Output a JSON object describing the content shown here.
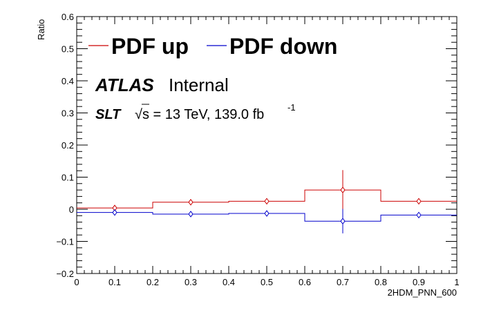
{
  "chart_data": {
    "type": "line",
    "style": "step-histogram-with-markers",
    "ylabel": "Ratio",
    "xlabel": "2HDM_PNN_600",
    "xlim": [
      0,
      1
    ],
    "ylim": [
      -0.2,
      0.6
    ],
    "x_ticks": [
      0,
      0.1,
      0.2,
      0.3,
      0.4,
      0.5,
      0.6,
      0.7,
      0.8,
      0.9,
      1
    ],
    "x_tick_labels": [
      "0",
      "0.1",
      "0.2",
      "0.3",
      "0.4",
      "0.5",
      "0.6",
      "0.7",
      "0.8",
      "0.9",
      "1"
    ],
    "y_ticks": [
      -0.2,
      -0.1,
      0,
      0.1,
      0.2,
      0.3,
      0.4,
      0.5,
      0.6
    ],
    "y_tick_labels": [
      "−0.2",
      "−0.1",
      "0",
      "0.1",
      "0.2",
      "0.3",
      "0.4",
      "0.5",
      "0.6"
    ],
    "bin_edges": [
      0,
      0.2,
      0.4,
      0.6,
      0.8,
      1.0
    ],
    "series": [
      {
        "name": "PDF up",
        "color": "#cc0000",
        "values": [
          0.004,
          0.022,
          0.025,
          0.06,
          0.025
        ],
        "marker_x": [
          0.1,
          0.3,
          0.5,
          0.7,
          0.9
        ],
        "errors": [
          0.003,
          0.006,
          0.005,
          0.062,
          0.004
        ]
      },
      {
        "name": "PDF down",
        "color": "#0000cc",
        "values": [
          -0.01,
          -0.015,
          -0.013,
          -0.037,
          -0.018
        ],
        "marker_x": [
          0.1,
          0.3,
          0.5,
          0.7,
          0.9
        ],
        "errors": [
          0.003,
          0.005,
          0.004,
          0.038,
          0.004
        ]
      }
    ],
    "legend_position": "top-left"
  },
  "labels": {
    "atlas": "ATLAS",
    "internal": "Internal",
    "channel": "SLT",
    "sqrt_symbol": "√",
    "energy_text": "s = 13 TeV, 139.0 fb",
    "energy_superscript": "-1"
  }
}
